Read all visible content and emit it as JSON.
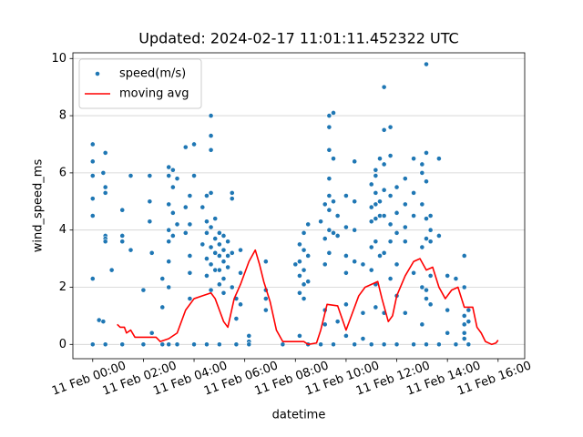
{
  "chart_data": {
    "type": "scatter_line",
    "title": "Updated: 2024-02-17 11:01:11.452322 UTC",
    "xlabel": "datetime",
    "ylabel": "wind_speed_ms",
    "xlim": [
      "10 Feb 23:13",
      "11 Feb 17:03"
    ],
    "xticks": [
      "11 Feb 00:00",
      "11 Feb 02:00",
      "11 Feb 04:00",
      "11 Feb 06:00",
      "11 Feb 08:00",
      "11 Feb 10:00",
      "11 Feb 12:00",
      "11 Feb 14:00",
      "11 Feb 16:00"
    ],
    "ylim": [
      -0.5,
      10.2
    ],
    "yticks": [
      0,
      2,
      4,
      6,
      8,
      10
    ],
    "grid": "y",
    "legend": "upper left",
    "series": [
      {
        "name": "speed(m/s)",
        "color": "#1f77b4",
        "kind": "scatter",
        "x": [
          "11 Feb 00:00",
          "11 Feb 00:00",
          "11 Feb 00:00",
          "11 Feb 00:00",
          "11 Feb 00:00",
          "11 Feb 00:00",
          "11 Feb 00:00",
          "11 Feb 00:15",
          "11 Feb 00:25",
          "11 Feb 00:25",
          "11 Feb 00:30",
          "11 Feb 00:30",
          "11 Feb 00:30",
          "11 Feb 00:30",
          "11 Feb 00:30",
          "11 Feb 00:30",
          "11 Feb 00:30",
          "11 Feb 00:45",
          "11 Feb 01:10",
          "11 Feb 01:10",
          "11 Feb 01:10",
          "11 Feb 01:10",
          "11 Feb 01:30",
          "11 Feb 01:30",
          "11 Feb 02:00",
          "11 Feb 02:00",
          "11 Feb 02:15",
          "11 Feb 02:15",
          "11 Feb 02:15",
          "11 Feb 02:20",
          "11 Feb 02:20",
          "11 Feb 02:45",
          "11 Feb 02:45",
          "11 Feb 02:45",
          "11 Feb 03:00",
          "11 Feb 03:00",
          "11 Feb 03:00",
          "11 Feb 03:00",
          "11 Feb 03:00",
          "11 Feb 03:00",
          "11 Feb 03:00",
          "11 Feb 03:00",
          "11 Feb 03:10",
          "11 Feb 03:10",
          "11 Feb 03:10",
          "11 Feb 03:10",
          "11 Feb 03:20",
          "11 Feb 03:20",
          "11 Feb 03:20",
          "11 Feb 03:40",
          "11 Feb 03:40",
          "11 Feb 03:40",
          "11 Feb 03:50",
          "11 Feb 03:50",
          "11 Feb 03:50",
          "11 Feb 03:50",
          "11 Feb 03:50",
          "11 Feb 04:00",
          "11 Feb 04:00",
          "11 Feb 04:00",
          "11 Feb 04:20",
          "11 Feb 04:20",
          "11 Feb 04:30",
          "11 Feb 04:30",
          "11 Feb 04:30",
          "11 Feb 04:30",
          "11 Feb 04:30",
          "11 Feb 04:30",
          "11 Feb 04:40",
          "11 Feb 04:40",
          "11 Feb 04:40",
          "11 Feb 04:40",
          "11 Feb 04:40",
          "11 Feb 04:40",
          "11 Feb 04:40",
          "11 Feb 04:40",
          "11 Feb 04:50",
          "11 Feb 04:50",
          "11 Feb 04:50",
          "11 Feb 04:50",
          "11 Feb 05:00",
          "11 Feb 05:00",
          "11 Feb 05:00",
          "11 Feb 05:00",
          "11 Feb 05:00",
          "11 Feb 05:00",
          "11 Feb 05:10",
          "11 Feb 05:10",
          "11 Feb 05:10",
          "11 Feb 05:10",
          "11 Feb 05:10",
          "11 Feb 05:20",
          "11 Feb 05:20",
          "11 Feb 05:20",
          "11 Feb 05:30",
          "11 Feb 05:30",
          "11 Feb 05:30",
          "11 Feb 05:30",
          "11 Feb 05:40",
          "11 Feb 05:40",
          "11 Feb 05:40",
          "11 Feb 05:50",
          "11 Feb 05:50",
          "11 Feb 05:50",
          "11 Feb 06:10",
          "11 Feb 06:10",
          "11 Feb 06:10",
          "11 Feb 06:50",
          "11 Feb 06:50",
          "11 Feb 06:50",
          "11 Feb 06:50",
          "11 Feb 07:30",
          "11 Feb 08:00",
          "11 Feb 08:10",
          "11 Feb 08:10",
          "11 Feb 08:10",
          "11 Feb 08:10",
          "11 Feb 08:10",
          "11 Feb 08:20",
          "11 Feb 08:20",
          "11 Feb 08:20",
          "11 Feb 08:20",
          "11 Feb 08:20",
          "11 Feb 08:30",
          "11 Feb 08:30",
          "11 Feb 08:30",
          "11 Feb 08:30",
          "11 Feb 09:00",
          "11 Feb 09:00",
          "11 Feb 09:10",
          "11 Feb 09:10",
          "11 Feb 09:10",
          "11 Feb 09:10",
          "11 Feb 09:10",
          "11 Feb 09:20",
          "11 Feb 09:20",
          "11 Feb 09:20",
          "11 Feb 09:20",
          "11 Feb 09:20",
          "11 Feb 09:20",
          "11 Feb 09:20",
          "11 Feb 09:20",
          "11 Feb 09:30",
          "11 Feb 09:30",
          "11 Feb 09:30",
          "11 Feb 09:30",
          "11 Feb 09:30",
          "11 Feb 09:40",
          "11 Feb 09:40",
          "11 Feb 09:40",
          "11 Feb 10:00",
          "11 Feb 10:00",
          "11 Feb 10:00",
          "11 Feb 10:00",
          "11 Feb 10:00",
          "11 Feb 10:00",
          "11 Feb 10:20",
          "11 Feb 10:20",
          "11 Feb 10:20",
          "11 Feb 10:20",
          "11 Feb 10:20",
          "11 Feb 10:40",
          "11 Feb 10:40",
          "11 Feb 10:40",
          "11 Feb 11:00",
          "11 Feb 11:00",
          "11 Feb 11:00",
          "11 Feb 11:00",
          "11 Feb 11:00",
          "11 Feb 11:00",
          "11 Feb 11:10",
          "11 Feb 11:10",
          "11 Feb 11:10",
          "11 Feb 11:10",
          "11 Feb 11:10",
          "11 Feb 11:10",
          "11 Feb 11:10",
          "11 Feb 11:10",
          "11 Feb 11:20",
          "11 Feb 11:20",
          "11 Feb 11:20",
          "11 Feb 11:20",
          "11 Feb 11:30",
          "11 Feb 11:30",
          "11 Feb 11:30",
          "11 Feb 11:30",
          "11 Feb 11:30",
          "11 Feb 11:30",
          "11 Feb 11:30",
          "11 Feb 11:30",
          "11 Feb 11:45",
          "11 Feb 11:45",
          "11 Feb 11:45",
          "11 Feb 11:45",
          "11 Feb 11:45",
          "11 Feb 11:45",
          "11 Feb 12:00",
          "11 Feb 12:00",
          "11 Feb 12:00",
          "11 Feb 12:00",
          "11 Feb 12:00",
          "11 Feb 12:00",
          "11 Feb 12:20",
          "11 Feb 12:20",
          "11 Feb 12:20",
          "11 Feb 12:20",
          "11 Feb 12:20",
          "11 Feb 12:40",
          "11 Feb 12:40",
          "11 Feb 12:40",
          "11 Feb 12:40",
          "11 Feb 12:40",
          "11 Feb 13:00",
          "11 Feb 13:00",
          "11 Feb 13:00",
          "11 Feb 13:00",
          "11 Feb 13:00",
          "11 Feb 13:00",
          "11 Feb 13:10",
          "11 Feb 13:10",
          "11 Feb 13:10",
          "11 Feb 13:10",
          "11 Feb 13:10",
          "11 Feb 13:10",
          "11 Feb 13:10",
          "11 Feb 13:10",
          "11 Feb 13:20",
          "11 Feb 13:20",
          "11 Feb 13:20",
          "11 Feb 13:20",
          "11 Feb 13:20",
          "11 Feb 13:40",
          "11 Feb 13:40",
          "11 Feb 13:40",
          "11 Feb 14:00",
          "11 Feb 14:00",
          "11 Feb 14:00",
          "11 Feb 14:20",
          "11 Feb 14:20",
          "11 Feb 14:40",
          "11 Feb 14:40",
          "11 Feb 14:40",
          "11 Feb 14:40",
          "11 Feb 14:40",
          "11 Feb 14:40",
          "11 Feb 14:50",
          "11 Feb 14:50",
          "11 Feb 14:50"
        ],
        "values": [
          7.0,
          6.4,
          5.9,
          5.1,
          4.5,
          2.3,
          0,
          0.85,
          0.8,
          6.0,
          6.7,
          5.5,
          3.8,
          3.7,
          5.3,
          3.6,
          0,
          2.6,
          4.7,
          3.8,
          3.6,
          0,
          5.9,
          3.3,
          1.9,
          0,
          5.9,
          5.0,
          4.3,
          3.2,
          0.4,
          1.3,
          2.3,
          0,
          6.2,
          5.9,
          4.9,
          4.0,
          3.6,
          2.9,
          2.0,
          0,
          6.1,
          5.5,
          4.6,
          3.8,
          5.8,
          4.2,
          0,
          6.9,
          4.8,
          3.9,
          2.5,
          1.6,
          5.2,
          4.2,
          3.1,
          7.0,
          5.9,
          0,
          4.8,
          3.5,
          5.2,
          4.3,
          3.9,
          3.0,
          2.4,
          0,
          8.0,
          7.3,
          6.8,
          5.3,
          4.1,
          3.4,
          2.8,
          1.9,
          4.4,
          3.7,
          3.2,
          2.6,
          3.9,
          3.5,
          3.1,
          2.6,
          2.1,
          0,
          3.8,
          3.3,
          2.9,
          2.3,
          1.8,
          3.6,
          3.1,
          2.7,
          5.3,
          5.1,
          3.2,
          2.0,
          1.6,
          0.9,
          0,
          3.3,
          2.5,
          1.4,
          0.3,
          0.1,
          0,
          2.9,
          1.9,
          1.6,
          1.2,
          0,
          2.8,
          3.5,
          2.9,
          2.4,
          1.8,
          0.3,
          3.9,
          3.3,
          2.6,
          2.1,
          1.6,
          4.2,
          3.1,
          2.2,
          0,
          4.3,
          0,
          4.9,
          3.7,
          2.8,
          1.2,
          0.7,
          8.0,
          7.6,
          6.8,
          5.8,
          5.2,
          4.7,
          4.0,
          3.2,
          8.1,
          6.5,
          5.0,
          3.9,
          0,
          4.5,
          3.8,
          0.8,
          5.2,
          4.1,
          3.1,
          2.5,
          1.4,
          0.3,
          6.4,
          5.0,
          4.0,
          2.9,
          0,
          2.8,
          1.1,
          0.2,
          5.6,
          4.8,
          4.3,
          3.4,
          2.6,
          0,
          6.1,
          5.9,
          5.3,
          4.9,
          4.4,
          3.6,
          2.1,
          1.3,
          6.5,
          5.0,
          4.5,
          3.1,
          9.0,
          7.5,
          6.3,
          5.4,
          4.5,
          3.2,
          1.1,
          0,
          7.6,
          6.6,
          5.2,
          4.2,
          3.6,
          2.3,
          5.5,
          4.6,
          3.9,
          2.8,
          1.7,
          0,
          5.8,
          4.9,
          4.1,
          3.6,
          1.1,
          6.5,
          5.3,
          4.5,
          2.5,
          0,
          6.3,
          6.0,
          4.9,
          3.4,
          2.0,
          0.7,
          9.8,
          6.7,
          5.7,
          4.4,
          3.7,
          1.9,
          1.6,
          0,
          4.5,
          4.0,
          3.6,
          2.4,
          1.4,
          6.5,
          3.8,
          0,
          2.4,
          1.2,
          0.4,
          2.3,
          0,
          3.1,
          2.0,
          1.0,
          0.7,
          0.4,
          0.2,
          1.2,
          0.8,
          0
        ]
      },
      {
        "name": "moving avg",
        "color": "#ff0000",
        "kind": "line",
        "x": [
          "11 Feb 00:58",
          "11 Feb 01:05",
          "11 Feb 01:15",
          "11 Feb 01:20",
          "11 Feb 01:30",
          "11 Feb 01:40",
          "11 Feb 02:00",
          "11 Feb 02:30",
          "11 Feb 02:40",
          "11 Feb 03:00",
          "11 Feb 03:20",
          "11 Feb 03:40",
          "11 Feb 04:00",
          "11 Feb 04:20",
          "11 Feb 04:40",
          "11 Feb 04:50",
          "11 Feb 05:00",
          "11 Feb 05:10",
          "11 Feb 05:20",
          "11 Feb 05:35",
          "11 Feb 05:50",
          "11 Feb 06:10",
          "11 Feb 06:25",
          "11 Feb 06:35",
          "11 Feb 06:45",
          "11 Feb 07:00",
          "11 Feb 07:15",
          "11 Feb 07:30",
          "11 Feb 08:00",
          "11 Feb 08:20",
          "11 Feb 08:30",
          "11 Feb 08:50",
          "11 Feb 09:00",
          "11 Feb 09:15",
          "11 Feb 09:40",
          "11 Feb 10:00",
          "11 Feb 10:15",
          "11 Feb 10:30",
          "11 Feb 10:45",
          "11 Feb 11:00",
          "11 Feb 11:15",
          "11 Feb 11:25",
          "11 Feb 11:40",
          "11 Feb 11:50",
          "11 Feb 12:00",
          "11 Feb 12:20",
          "11 Feb 12:40",
          "11 Feb 12:55",
          "11 Feb 13:10",
          "11 Feb 13:25",
          "11 Feb 13:40",
          "11 Feb 13:55",
          "11 Feb 14:10",
          "11 Feb 14:25",
          "11 Feb 14:40",
          "11 Feb 15:00",
          "11 Feb 15:10",
          "11 Feb 15:20",
          "11 Feb 15:30",
          "11 Feb 15:45",
          "11 Feb 15:55",
          "11 Feb 16:00"
        ],
        "values": [
          0.7,
          0.6,
          0.6,
          0.4,
          0.5,
          0.25,
          0.25,
          0.25,
          0.1,
          0.2,
          0.4,
          1.2,
          1.6,
          1.7,
          1.8,
          1.6,
          1.2,
          0.8,
          0.6,
          1.6,
          2.1,
          2.9,
          3.3,
          2.8,
          2.2,
          1.5,
          0.5,
          0.1,
          0.1,
          0.1,
          0.0,
          0.05,
          0.5,
          1.4,
          1.35,
          0.5,
          1.1,
          1.7,
          2.0,
          2.1,
          2.2,
          1.6,
          0.8,
          1.0,
          1.7,
          2.4,
          2.9,
          3.0,
          2.6,
          2.7,
          2.0,
          1.6,
          1.9,
          2.0,
          1.3,
          1.3,
          0.6,
          0.4,
          0.1,
          0.0,
          0.05,
          0.15
        ]
      }
    ]
  }
}
